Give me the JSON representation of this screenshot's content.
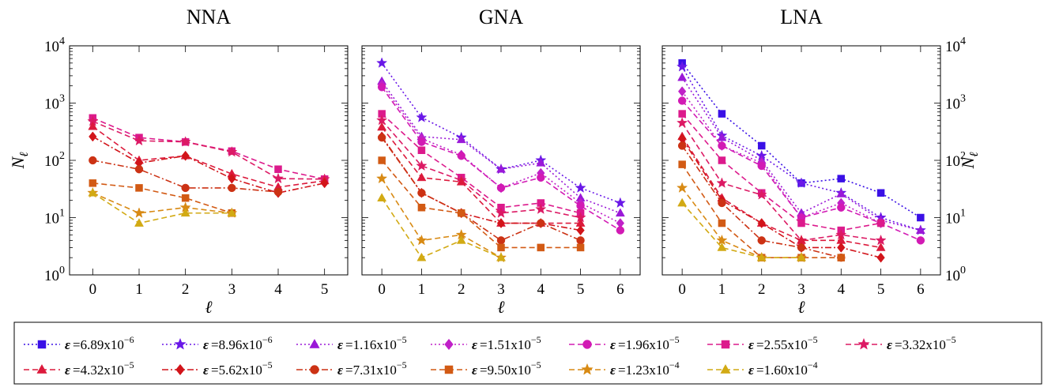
{
  "chart_data": {
    "type": "line",
    "y_scale": "log",
    "grid": false,
    "legend_placement": "bottom",
    "ylabel": "N_ℓ",
    "xlabel": "ℓ",
    "ylim": [
      1,
      10000
    ],
    "y_ticks": [
      {
        "value": 1,
        "base": "10",
        "exp": "0"
      },
      {
        "value": 10,
        "base": "10",
        "exp": "1"
      },
      {
        "value": 100,
        "base": "10",
        "exp": "2"
      },
      {
        "value": 1000,
        "base": "10",
        "exp": "3"
      },
      {
        "value": 10000,
        "base": "10",
        "exp": "4"
      }
    ],
    "legend": [
      {
        "eps": "ε",
        "mant": "=6.89x10",
        "exp": "−6",
        "color": "#3a10e6",
        "marker": "square",
        "dash": "dot"
      },
      {
        "eps": "ε",
        "mant": "=8.96x10",
        "exp": "−6",
        "color": "#6a18e8",
        "marker": "star",
        "dash": "dot"
      },
      {
        "eps": "ε",
        "mant": "=1.16x10",
        "exp": "−5",
        "color": "#9a18d8",
        "marker": "triangle",
        "dash": "dot"
      },
      {
        "eps": "ε",
        "mant": "=1.51x10",
        "exp": "−5",
        "color": "#c020c8",
        "marker": "diamond",
        "dash": "dot"
      },
      {
        "eps": "ε",
        "mant": "=1.96x10",
        "exp": "−5",
        "color": "#d21ab4",
        "marker": "circle",
        "dash": "dash"
      },
      {
        "eps": "ε",
        "mant": "=2.55x10",
        "exp": "−5",
        "color": "#dc1a8c",
        "marker": "square",
        "dash": "dash"
      },
      {
        "eps": "ε",
        "mant": "=3.32x10",
        "exp": "−5",
        "color": "#dc1a64",
        "marker": "star",
        "dash": "dash"
      },
      {
        "eps": "ε",
        "mant": "=4.32x10",
        "exp": "−5",
        "color": "#dc1a3c",
        "marker": "triangle",
        "dash": "dash"
      },
      {
        "eps": "ε",
        "mant": "=5.62x10",
        "exp": "−5",
        "color": "#d2141a",
        "marker": "diamond",
        "dash": "dashdot"
      },
      {
        "eps": "ε",
        "mant": "=7.31x10",
        "exp": "−5",
        "color": "#cc3214",
        "marker": "circle",
        "dash": "dashdot"
      },
      {
        "eps": "ε",
        "mant": "=9.50x10",
        "exp": "−5",
        "color": "#d25a14",
        "marker": "square",
        "dash": "dash"
      },
      {
        "eps": "ε",
        "mant": "=1.23x10",
        "exp": "−4",
        "color": "#d88a14",
        "marker": "star",
        "dash": "dash"
      },
      {
        "eps": "ε",
        "mant": "=1.60x10",
        "exp": "−4",
        "color": "#d2aa14",
        "marker": "triangle",
        "dash": "dash"
      }
    ],
    "panels": [
      {
        "title": "NNA",
        "xlim": [
          -0.5,
          5.5
        ],
        "x_ticks": [
          "0",
          "1",
          "2",
          "3",
          "4",
          "5"
        ],
        "series": [
          {
            "idx": 5,
            "x": [
              0,
              1,
              2,
              3,
              4,
              5
            ],
            "y": [
              550,
              250,
              210,
              145,
              70,
              47
            ]
          },
          {
            "idx": 6,
            "x": [
              0,
              1,
              2,
              3,
              4,
              5
            ],
            "y": [
              480,
              220,
              210,
              140,
              48,
              47
            ]
          },
          {
            "idx": 7,
            "x": [
              0,
              1,
              2,
              3,
              4,
              5
            ],
            "y": [
              390,
              100,
              120,
              58,
              34,
              44
            ]
          },
          {
            "idx": 8,
            "x": [
              0,
              1,
              2,
              3,
              4,
              5
            ],
            "y": [
              260,
              90,
              120,
              48,
              27,
              40
            ]
          },
          {
            "idx": 9,
            "x": [
              0,
              1,
              2,
              3,
              4
            ],
            "y": [
              100,
              70,
              33,
              33,
              28
            ]
          },
          {
            "idx": 10,
            "x": [
              0,
              1,
              2,
              3
            ],
            "y": [
              40,
              33,
              22,
              12
            ]
          },
          {
            "idx": 11,
            "x": [
              0,
              1,
              2,
              3
            ],
            "y": [
              27,
              12,
              15,
              12
            ]
          },
          {
            "idx": 12,
            "x": [
              0,
              1,
              2,
              3
            ],
            "y": [
              27,
              8,
              12,
              12
            ]
          }
        ]
      },
      {
        "title": "GNA",
        "xlim": [
          -0.5,
          6.5
        ],
        "x_ticks": [
          "0",
          "1",
          "2",
          "3",
          "4",
          "5",
          "6"
        ],
        "series": [
          {
            "idx": 1,
            "x": [
              0,
              1,
              2,
              3,
              4,
              5,
              6
            ],
            "y": [
              5000,
              560,
              250,
              70,
              100,
              33,
              18
            ]
          },
          {
            "idx": 2,
            "x": [
              0,
              1,
              2,
              3,
              4,
              5,
              6
            ],
            "y": [
              2400,
              260,
              230,
              70,
              90,
              22,
              12
            ]
          },
          {
            "idx": 3,
            "x": [
              0,
              1,
              2,
              3,
              4,
              5,
              6
            ],
            "y": [
              2100,
              240,
              125,
              33,
              60,
              18,
              8
            ]
          },
          {
            "idx": 4,
            "x": [
              0,
              1,
              2,
              3,
              4,
              5,
              6
            ],
            "y": [
              1900,
              210,
              120,
              33,
              50,
              16,
              6
            ]
          },
          {
            "idx": 5,
            "x": [
              0,
              1,
              2,
              3,
              4,
              5
            ],
            "y": [
              650,
              150,
              50,
              15,
              18,
              12
            ]
          },
          {
            "idx": 6,
            "x": [
              0,
              1,
              2,
              3,
              4,
              5
            ],
            "y": [
              500,
              80,
              45,
              12,
              14,
              10
            ]
          },
          {
            "idx": 7,
            "x": [
              0,
              1,
              2,
              3,
              4,
              5
            ],
            "y": [
              380,
              50,
              42,
              8,
              8,
              8
            ]
          },
          {
            "idx": 8,
            "x": [
              0,
              1,
              2,
              3,
              4,
              5
            ],
            "y": [
              260,
              27,
              12,
              8,
              8,
              6
            ]
          },
          {
            "idx": 9,
            "x": [
              0,
              1,
              2,
              3,
              4,
              5
            ],
            "y": [
              250,
              27,
              12,
              4,
              8,
              4
            ]
          },
          {
            "idx": 10,
            "x": [
              0,
              1,
              2,
              3,
              4,
              5
            ],
            "y": [
              100,
              15,
              12,
              3,
              3,
              3
            ]
          },
          {
            "idx": 11,
            "x": [
              0,
              1,
              2,
              3
            ],
            "y": [
              48,
              4,
              5,
              2
            ]
          },
          {
            "idx": 12,
            "x": [
              0,
              1,
              2,
              3
            ],
            "y": [
              22,
              2,
              4,
              2
            ]
          }
        ]
      },
      {
        "title": "LNA",
        "xlim": [
          -0.5,
          6.5
        ],
        "x_ticks": [
          "0",
          "1",
          "2",
          "3",
          "4",
          "5",
          "6"
        ],
        "series": [
          {
            "idx": 0,
            "x": [
              0,
              1,
              2,
              3,
              4,
              5,
              6
            ],
            "y": [
              5000,
              650,
              180,
              40,
              48,
              27,
              10
            ]
          },
          {
            "idx": 1,
            "x": [
              0,
              1,
              2,
              3,
              4,
              5,
              6
            ],
            "y": [
              4300,
              270,
              120,
              40,
              27,
              10,
              6
            ]
          },
          {
            "idx": 2,
            "x": [
              0,
              1,
              2,
              3,
              4,
              5,
              6
            ],
            "y": [
              2800,
              250,
              100,
              12,
              26,
              9,
              6
            ]
          },
          {
            "idx": 3,
            "x": [
              0,
              1,
              2,
              3,
              4,
              5
            ],
            "y": [
              1600,
              180,
              90,
              10,
              18,
              8
            ]
          },
          {
            "idx": 4,
            "x": [
              0,
              1,
              2,
              3,
              4,
              5,
              6
            ],
            "y": [
              1100,
              180,
              80,
              10,
              15,
              8,
              4
            ]
          },
          {
            "idx": 5,
            "x": [
              0,
              1,
              2,
              3,
              4,
              5
            ],
            "y": [
              650,
              100,
              27,
              8,
              6,
              8
            ]
          },
          {
            "idx": 6,
            "x": [
              0,
              1,
              2,
              3,
              4,
              5
            ],
            "y": [
              450,
              40,
              25,
              4,
              5,
              4
            ]
          },
          {
            "idx": 7,
            "x": [
              0,
              1,
              2,
              3,
              4,
              5
            ],
            "y": [
              260,
              22,
              8,
              4,
              4,
              3
            ]
          },
          {
            "idx": 8,
            "x": [
              0,
              1,
              2,
              3,
              4,
              5
            ],
            "y": [
              240,
              20,
              8,
              3,
              3,
              2
            ]
          },
          {
            "idx": 9,
            "x": [
              0,
              1,
              2,
              3,
              4
            ],
            "y": [
              180,
              18,
              4,
              3,
              2
            ]
          },
          {
            "idx": 10,
            "x": [
              0,
              1,
              2,
              3,
              4
            ],
            "y": [
              85,
              8,
              2,
              2,
              2
            ]
          },
          {
            "idx": 11,
            "x": [
              0,
              1,
              2,
              3
            ],
            "y": [
              33,
              4,
              2,
              2
            ]
          },
          {
            "idx": 12,
            "x": [
              0,
              1,
              2,
              3
            ],
            "y": [
              18,
              3,
              2,
              2
            ]
          }
        ]
      }
    ]
  }
}
